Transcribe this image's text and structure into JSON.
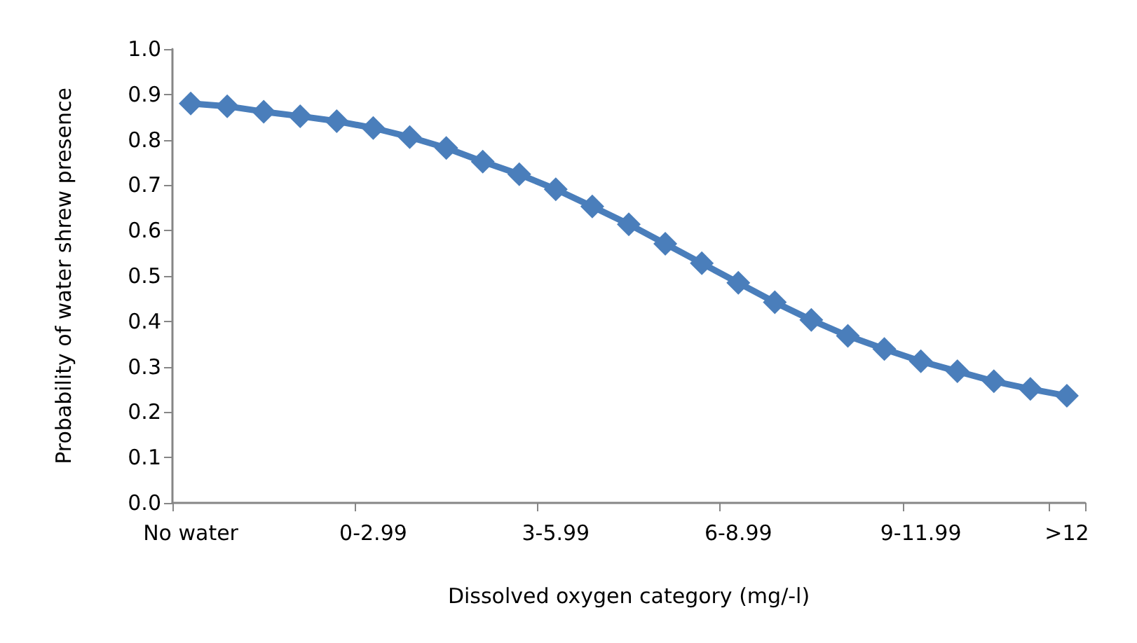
{
  "chart_data": {
    "type": "line",
    "xlabel": "Dissolved oxygen category (mg/-l)",
    "ylabel": "Probability of water shrew presence",
    "categories": [
      "No water",
      null,
      null,
      null,
      null,
      "0-2.99",
      null,
      null,
      null,
      null,
      "3-5.99",
      null,
      null,
      null,
      null,
      "6-8.99",
      null,
      null,
      null,
      null,
      "9-11.99",
      null,
      null,
      null,
      ">12"
    ],
    "series": [
      {
        "color": "#4a7ebb",
        "values": [
          0.88,
          0.874,
          0.862,
          0.852,
          0.841,
          0.826,
          0.806,
          0.782,
          0.752,
          0.724,
          0.691,
          0.653,
          0.614,
          0.571,
          0.528,
          0.485,
          0.442,
          0.403,
          0.368,
          0.339,
          0.312,
          0.29,
          0.268,
          0.251,
          0.236
        ]
      }
    ],
    "ylim": [
      0,
      1
    ],
    "yticks": [
      {
        "value": 0,
        "label": "0.0"
      },
      {
        "value": 0.1,
        "label": "0.1"
      },
      {
        "value": 0.2,
        "label": "0.2"
      },
      {
        "value": 0.3,
        "label": "0.3"
      },
      {
        "value": 0.4,
        "label": "0.4"
      },
      {
        "value": 0.5,
        "label": "0.5"
      },
      {
        "value": 0.6,
        "label": "0.6"
      },
      {
        "value": 0.7,
        "label": "0.7"
      },
      {
        "value": 0.8,
        "label": "0.8"
      },
      {
        "value": 0.9,
        "label": "0.9"
      },
      {
        "value": 1,
        "label": "1.0"
      }
    ],
    "grid": false,
    "marker": "diamond",
    "line_style": "solid"
  }
}
